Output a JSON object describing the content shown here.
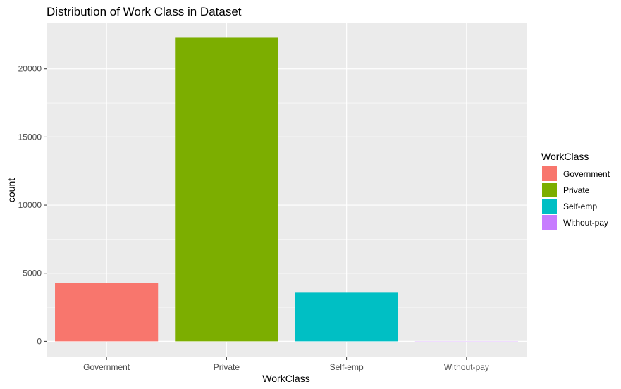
{
  "chart_data": {
    "type": "bar",
    "title": "Distribution of Work Class in Dataset",
    "xlabel": "WorkClass",
    "ylabel": "count",
    "categories": [
      "Government",
      "Private",
      "Self-emp",
      "Without-pay"
    ],
    "values": [
      4290,
      22290,
      3570,
      14
    ],
    "colors": [
      "#F8766D",
      "#7CAE00",
      "#00BFC4",
      "#C77CFF"
    ],
    "ylim": [
      0,
      23400
    ],
    "yticks": [
      0,
      5000,
      10000,
      15000,
      20000
    ],
    "ytick_labels": [
      "0",
      "5000",
      "10000",
      "15000",
      "20000"
    ],
    "grid": true,
    "panel_background": "#EBEBEB",
    "legend": {
      "title": "WorkClass",
      "position": "right",
      "entries": [
        "Government",
        "Private",
        "Self-emp",
        "Without-pay"
      ]
    }
  }
}
